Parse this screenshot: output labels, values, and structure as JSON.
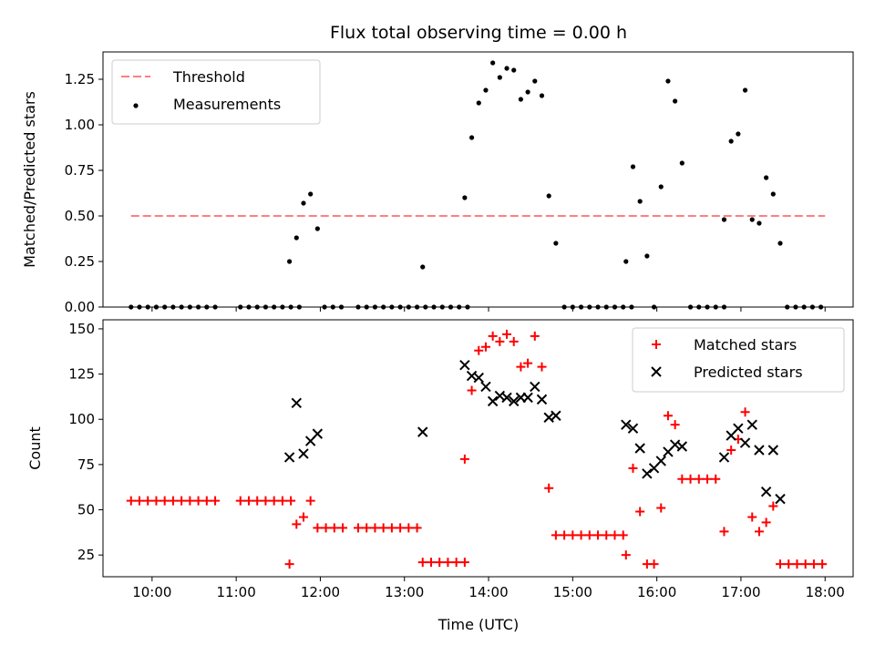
{
  "chart_data": [
    {
      "type": "scatter",
      "title": "Flux total observing time = 0.00 h",
      "xlabel": "",
      "ylabel": "Matched/Predicted stars",
      "xlim": [
        "09:25",
        "18:20"
      ],
      "ylim": [
        0,
        1.4
      ],
      "x_ticks": [
        "10:00",
        "11:00",
        "12:00",
        "13:00",
        "14:00",
        "15:00",
        "16:00",
        "17:00",
        "18:00"
      ],
      "y_ticks": [
        "0.00",
        "0.25",
        "0.50",
        "0.75",
        "1.00",
        "1.25"
      ],
      "x_ticklabels_visible": false,
      "grid": false,
      "legend": "top-left",
      "series": [
        {
          "name": "Threshold",
          "style": "dashed-line",
          "color": "#ff7f7f",
          "points": [
            [
              "09:45",
              0.5
            ],
            [
              "18:00",
              0.5
            ]
          ]
        },
        {
          "name": "Measurements",
          "style": "dot",
          "color": "#000000",
          "points": [
            [
              "09:45",
              0
            ],
            [
              "09:51",
              0
            ],
            [
              "09:57",
              0
            ],
            [
              "10:03",
              0
            ],
            [
              "10:09",
              0
            ],
            [
              "10:15",
              0
            ],
            [
              "10:21",
              0
            ],
            [
              "10:27",
              0
            ],
            [
              "10:33",
              0
            ],
            [
              "10:39",
              0
            ],
            [
              "10:45",
              0
            ],
            [
              "11:03",
              0
            ],
            [
              "11:09",
              0
            ],
            [
              "11:15",
              0
            ],
            [
              "11:21",
              0
            ],
            [
              "11:27",
              0
            ],
            [
              "11:33",
              0
            ],
            [
              "11:39",
              0
            ],
            [
              "11:45",
              0
            ],
            [
              "11:38",
              0.25
            ],
            [
              "11:43",
              0.38
            ],
            [
              "11:48",
              0.57
            ],
            [
              "11:53",
              0.62
            ],
            [
              "11:58",
              0.43
            ],
            [
              "12:03",
              0
            ],
            [
              "12:09",
              0
            ],
            [
              "12:15",
              0
            ],
            [
              "12:27",
              0
            ],
            [
              "12:33",
              0
            ],
            [
              "12:39",
              0
            ],
            [
              "12:45",
              0
            ],
            [
              "12:51",
              0
            ],
            [
              "12:57",
              0
            ],
            [
              "13:03",
              0
            ],
            [
              "13:09",
              0
            ],
            [
              "13:15",
              0
            ],
            [
              "13:13",
              0.22
            ],
            [
              "13:21",
              0
            ],
            [
              "13:27",
              0
            ],
            [
              "13:33",
              0
            ],
            [
              "13:39",
              0
            ],
            [
              "13:45",
              0
            ],
            [
              "13:43",
              0.6
            ],
            [
              "13:48",
              0.93
            ],
            [
              "13:53",
              1.12
            ],
            [
              "13:58",
              1.19
            ],
            [
              "14:03",
              1.34
            ],
            [
              "14:08",
              1.26
            ],
            [
              "14:13",
              1.31
            ],
            [
              "14:18",
              1.3
            ],
            [
              "14:23",
              1.14
            ],
            [
              "14:28",
              1.18
            ],
            [
              "14:33",
              1.24
            ],
            [
              "14:38",
              1.16
            ],
            [
              "14:43",
              0.61
            ],
            [
              "14:48",
              0.35
            ],
            [
              "14:54",
              0
            ],
            [
              "15:00",
              0
            ],
            [
              "15:06",
              0
            ],
            [
              "15:12",
              0
            ],
            [
              "15:18",
              0
            ],
            [
              "15:24",
              0
            ],
            [
              "15:30",
              0
            ],
            [
              "15:36",
              0
            ],
            [
              "15:42",
              0
            ],
            [
              "15:38",
              0.25
            ],
            [
              "15:43",
              0.77
            ],
            [
              "15:48",
              0.58
            ],
            [
              "15:53",
              0.28
            ],
            [
              "15:58",
              0
            ],
            [
              "16:03",
              0.66
            ],
            [
              "16:08",
              1.24
            ],
            [
              "16:13",
              1.13
            ],
            [
              "16:18",
              0.79
            ],
            [
              "16:24",
              0
            ],
            [
              "16:30",
              0
            ],
            [
              "16:36",
              0
            ],
            [
              "16:42",
              0
            ],
            [
              "16:48",
              0
            ],
            [
              "16:48",
              0.48
            ],
            [
              "16:53",
              0.91
            ],
            [
              "16:58",
              0.95
            ],
            [
              "17:03",
              1.19
            ],
            [
              "17:08",
              0.48
            ],
            [
              "17:13",
              0.46
            ],
            [
              "17:18",
              0.71
            ],
            [
              "17:23",
              0.62
            ],
            [
              "17:28",
              0.35
            ],
            [
              "17:33",
              0
            ],
            [
              "17:39",
              0
            ],
            [
              "17:45",
              0
            ],
            [
              "17:51",
              0
            ],
            [
              "17:57",
              0
            ]
          ]
        }
      ]
    },
    {
      "type": "scatter",
      "title": "",
      "xlabel": "Time (UTC)",
      "ylabel": "Count",
      "xlim": [
        "09:25",
        "18:20"
      ],
      "ylim": [
        13,
        155
      ],
      "x_ticks": [
        "10:00",
        "11:00",
        "12:00",
        "13:00",
        "14:00",
        "15:00",
        "16:00",
        "17:00",
        "18:00"
      ],
      "y_ticks": [
        "25",
        "50",
        "75",
        "100",
        "125",
        "150"
      ],
      "grid": false,
      "legend": "top-right",
      "series": [
        {
          "name": "Matched stars",
          "style": "plus",
          "color": "#ff0000",
          "points": [
            [
              "09:45",
              55
            ],
            [
              "09:51",
              55
            ],
            [
              "09:57",
              55
            ],
            [
              "10:03",
              55
            ],
            [
              "10:09",
              55
            ],
            [
              "10:15",
              55
            ],
            [
              "10:21",
              55
            ],
            [
              "10:27",
              55
            ],
            [
              "10:33",
              55
            ],
            [
              "10:39",
              55
            ],
            [
              "10:45",
              55
            ],
            [
              "11:03",
              55
            ],
            [
              "11:09",
              55
            ],
            [
              "11:15",
              55
            ],
            [
              "11:21",
              55
            ],
            [
              "11:27",
              55
            ],
            [
              "11:33",
              55
            ],
            [
              "11:39",
              55
            ],
            [
              "11:38",
              20
            ],
            [
              "11:43",
              42
            ],
            [
              "11:48",
              46
            ],
            [
              "11:53",
              55
            ],
            [
              "11:58",
              40
            ],
            [
              "12:04",
              40
            ],
            [
              "12:10",
              40
            ],
            [
              "12:16",
              40
            ],
            [
              "12:27",
              40
            ],
            [
              "12:33",
              40
            ],
            [
              "12:39",
              40
            ],
            [
              "12:45",
              40
            ],
            [
              "12:51",
              40
            ],
            [
              "12:57",
              40
            ],
            [
              "13:03",
              40
            ],
            [
              "13:09",
              40
            ],
            [
              "13:13",
              21
            ],
            [
              "13:19",
              21
            ],
            [
              "13:25",
              21
            ],
            [
              "13:31",
              21
            ],
            [
              "13:37",
              21
            ],
            [
              "13:43",
              21
            ],
            [
              "13:43",
              78
            ],
            [
              "13:48",
              116
            ],
            [
              "13:53",
              138
            ],
            [
              "13:58",
              140
            ],
            [
              "14:03",
              146
            ],
            [
              "14:08",
              143
            ],
            [
              "14:13",
              147
            ],
            [
              "14:18",
              143
            ],
            [
              "14:23",
              129
            ],
            [
              "14:28",
              131
            ],
            [
              "14:33",
              146
            ],
            [
              "14:38",
              129
            ],
            [
              "14:43",
              62
            ],
            [
              "14:48",
              36
            ],
            [
              "14:54",
              36
            ],
            [
              "15:00",
              36
            ],
            [
              "15:06",
              36
            ],
            [
              "15:12",
              36
            ],
            [
              "15:18",
              36
            ],
            [
              "15:24",
              36
            ],
            [
              "15:30",
              36
            ],
            [
              "15:36",
              36
            ],
            [
              "15:38",
              25
            ],
            [
              "15:43",
              73
            ],
            [
              "15:48",
              49
            ],
            [
              "15:53",
              20
            ],
            [
              "15:58",
              20
            ],
            [
              "16:03",
              51
            ],
            [
              "16:08",
              102
            ],
            [
              "16:13",
              97
            ],
            [
              "16:18",
              67
            ],
            [
              "16:24",
              67
            ],
            [
              "16:30",
              67
            ],
            [
              "16:36",
              67
            ],
            [
              "16:42",
              67
            ],
            [
              "16:48",
              38
            ],
            [
              "16:53",
              83
            ],
            [
              "16:58",
              89
            ],
            [
              "17:03",
              104
            ],
            [
              "17:08",
              46
            ],
            [
              "17:13",
              38
            ],
            [
              "17:18",
              43
            ],
            [
              "17:23",
              52
            ],
            [
              "17:28",
              20
            ],
            [
              "17:34",
              20
            ],
            [
              "17:40",
              20
            ],
            [
              "17:46",
              20
            ],
            [
              "17:52",
              20
            ],
            [
              "17:58",
              20
            ]
          ]
        },
        {
          "name": "Predicted stars",
          "style": "x",
          "color": "#000000",
          "points": [
            [
              "11:38",
              79
            ],
            [
              "11:43",
              109
            ],
            [
              "11:48",
              81
            ],
            [
              "11:53",
              88
            ],
            [
              "11:58",
              92
            ],
            [
              "13:13",
              93
            ],
            [
              "13:43",
              130
            ],
            [
              "13:48",
              124
            ],
            [
              "13:53",
              123
            ],
            [
              "13:58",
              118
            ],
            [
              "14:03",
              110
            ],
            [
              "14:08",
              113
            ],
            [
              "14:13",
              112
            ],
            [
              "14:18",
              110
            ],
            [
              "14:23",
              112
            ],
            [
              "14:28",
              112
            ],
            [
              "14:33",
              118
            ],
            [
              "14:38",
              111
            ],
            [
              "14:43",
              101
            ],
            [
              "14:48",
              102
            ],
            [
              "15:38",
              97
            ],
            [
              "15:43",
              95
            ],
            [
              "15:48",
              84
            ],
            [
              "15:53",
              70
            ],
            [
              "15:58",
              73
            ],
            [
              "16:03",
              77
            ],
            [
              "16:08",
              82
            ],
            [
              "16:13",
              86
            ],
            [
              "16:18",
              85
            ],
            [
              "16:48",
              79
            ],
            [
              "16:53",
              91
            ],
            [
              "16:58",
              95
            ],
            [
              "17:03",
              87
            ],
            [
              "17:08",
              97
            ],
            [
              "17:13",
              83
            ],
            [
              "17:18",
              60
            ],
            [
              "17:23",
              83
            ],
            [
              "17:28",
              56
            ]
          ]
        }
      ]
    }
  ]
}
